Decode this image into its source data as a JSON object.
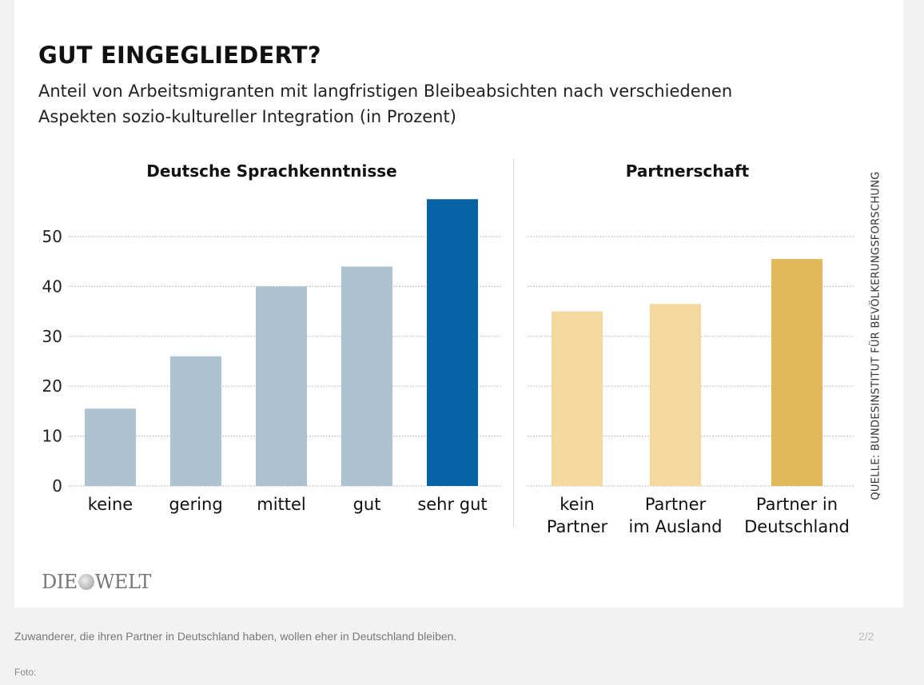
{
  "chart_data": [
    {
      "type": "bar",
      "title": "Deutsche Sprachkenntnisse",
      "categories": [
        "keine",
        "gering",
        "mittel",
        "gut",
        "sehr gut"
      ],
      "values": [
        15.5,
        26,
        40,
        44,
        57.5
      ],
      "colors": [
        "#aec3d1",
        "#aec3d1",
        "#aec3d1",
        "#aec3d1",
        "#0763a3"
      ],
      "xlabel": "",
      "ylabel": "",
      "ylim": [
        0,
        60
      ],
      "yticks": [
        0,
        10,
        20,
        30,
        40,
        50
      ],
      "grid": true
    },
    {
      "type": "bar",
      "title": "Partnerschaft",
      "categories": [
        [
          "kein",
          "Partner"
        ],
        [
          "Partner",
          "im Ausland"
        ],
        [
          "Partner in",
          "Deutschland"
        ]
      ],
      "values": [
        35,
        36.5,
        45.5
      ],
      "colors": [
        "#f3d9a0",
        "#f3d9a0",
        "#e2b85a"
      ],
      "xlabel": "",
      "ylabel": "",
      "ylim": [
        0,
        60
      ],
      "yticks": [
        0,
        10,
        20,
        30,
        40,
        50
      ],
      "grid": true
    }
  ],
  "header": {
    "title": "GUT EINGEGLIEDERT?",
    "subtitle_line1": "Anteil von Arbeitsmigranten mit langfristigen Bleibeabsichten nach verschiedenen",
    "subtitle_line2": "Aspekten sozio-kultureller Integration (in Prozent)"
  },
  "source": "QUELLE: BUNDESINSTITUT FÜR BEVÖLKERUNGSFORSCHUNG",
  "logo": {
    "left": "DIE",
    "right": "WELT"
  },
  "caption": "Zuwanderer, die ihren Partner in Deutschland haben, wollen eher in Deutschland bleiben.",
  "pager": "2/2",
  "foto_label": "Foto:"
}
